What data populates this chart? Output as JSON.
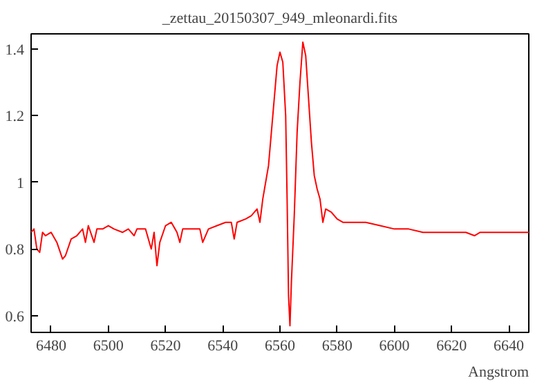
{
  "chart_data": {
    "type": "line",
    "title": "_zettau_20150307_949_mleonardi.fits",
    "xlabel": "Angstrom",
    "x": [
      6473,
      6474,
      6475,
      6476,
      6477,
      6478,
      6480,
      6482,
      6484,
      6485,
      6487,
      6489,
      6491,
      6492,
      6493,
      6495,
      6496,
      6498,
      6500,
      6502,
      6505,
      6507,
      6509,
      6510,
      6513,
      6515,
      6516,
      6517,
      6518,
      6520,
      6522,
      6524,
      6525,
      6526,
      6530,
      6532,
      6533,
      6535,
      6538,
      6541,
      6543,
      6544,
      6545,
      6548,
      6550,
      6552,
      6553,
      6554,
      6555,
      6556,
      6557,
      6558,
      6559,
      6560,
      6561,
      6562,
      6562.5,
      6563,
      6563.5,
      6564,
      6565,
      6566,
      6567,
      6568,
      6569,
      6570,
      6571,
      6572,
      6573,
      6574,
      6575,
      6576,
      6578,
      6580,
      6582,
      6585,
      6590,
      6595,
      6600,
      6605,
      6610,
      6615,
      6620,
      6625,
      6628,
      6630,
      6635,
      6640,
      6647
    ],
    "series": [
      {
        "color": "#ff0000",
        "values": [
          0.85,
          0.86,
          0.8,
          0.79,
          0.85,
          0.84,
          0.85,
          0.82,
          0.77,
          0.78,
          0.83,
          0.84,
          0.86,
          0.82,
          0.87,
          0.82,
          0.86,
          0.86,
          0.87,
          0.86,
          0.85,
          0.86,
          0.84,
          0.86,
          0.86,
          0.8,
          0.85,
          0.75,
          0.82,
          0.87,
          0.88,
          0.85,
          0.82,
          0.86,
          0.86,
          0.86,
          0.82,
          0.86,
          0.87,
          0.88,
          0.88,
          0.83,
          0.88,
          0.89,
          0.9,
          0.92,
          0.88,
          0.95,
          1.0,
          1.05,
          1.15,
          1.25,
          1.35,
          1.39,
          1.36,
          1.2,
          0.95,
          0.66,
          0.57,
          0.7,
          0.9,
          1.15,
          1.3,
          1.42,
          1.38,
          1.25,
          1.12,
          1.02,
          0.98,
          0.95,
          0.88,
          0.92,
          0.91,
          0.89,
          0.88,
          0.88,
          0.88,
          0.87,
          0.86,
          0.86,
          0.85,
          0.85,
          0.85,
          0.85,
          0.84,
          0.85,
          0.85,
          0.85,
          0.85
        ]
      }
    ],
    "xlim": [
      6473,
      6647
    ],
    "ylim": [
      0.55,
      1.445
    ],
    "xticks": [
      6480,
      6500,
      6520,
      6540,
      6560,
      6580,
      6600,
      6620,
      6640
    ],
    "yticks": [
      0.6,
      0.8,
      1,
      1.2,
      1.4
    ],
    "grid": false,
    "marker": "none",
    "line_style": "solid"
  }
}
